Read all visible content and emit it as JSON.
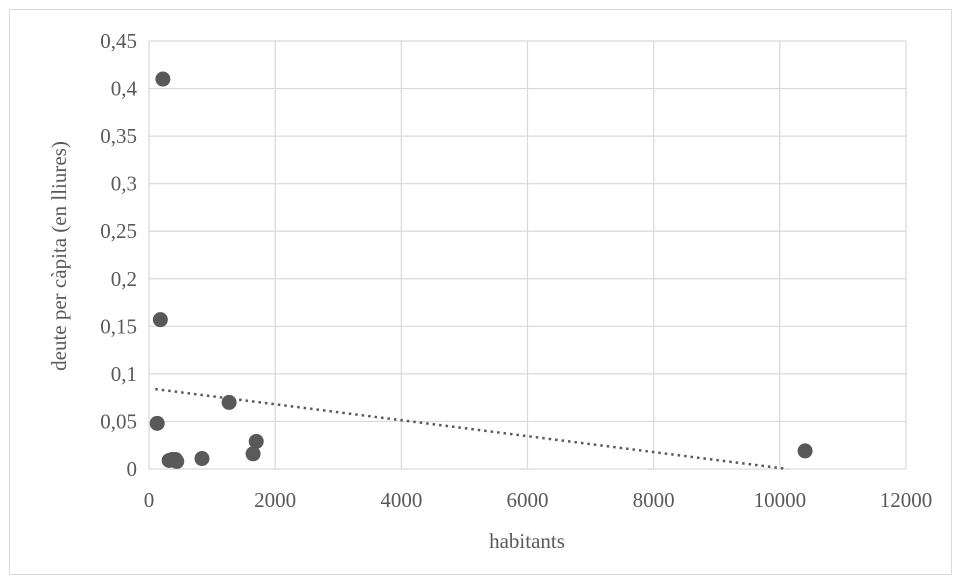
{
  "chart_data": {
    "type": "scatter",
    "title": "",
    "xlabel": "habitants",
    "ylabel": "deute per càpita (en lliures)",
    "xlim": [
      0,
      12000
    ],
    "ylim": [
      0,
      0.45
    ],
    "x_ticks": [
      0,
      2000,
      4000,
      6000,
      8000,
      10000,
      12000
    ],
    "x_tick_labels": [
      "0",
      "2000",
      "4000",
      "6000",
      "8000",
      "10000",
      "12000"
    ],
    "y_ticks": [
      0,
      0.05,
      0.1,
      0.15,
      0.2,
      0.25,
      0.3,
      0.35,
      0.4,
      0.45
    ],
    "y_tick_labels": [
      "0",
      "0,05",
      "0,1",
      "0,15",
      "0,2",
      "0,25",
      "0,3",
      "0,35",
      "0,4",
      "0,45"
    ],
    "grid": true,
    "legend": "none",
    "series": [
      {
        "points": [
          {
            "x": 220,
            "y": 0.41
          },
          {
            "x": 180,
            "y": 0.157
          },
          {
            "x": 130,
            "y": 0.048
          },
          {
            "x": 320,
            "y": 0.009
          },
          {
            "x": 370,
            "y": 0.01
          },
          {
            "x": 420,
            "y": 0.01
          },
          {
            "x": 440,
            "y": 0.008
          },
          {
            "x": 840,
            "y": 0.011
          },
          {
            "x": 1270,
            "y": 0.07
          },
          {
            "x": 1650,
            "y": 0.016
          },
          {
            "x": 1700,
            "y": 0.029
          },
          {
            "x": 10400,
            "y": 0.019
          }
        ],
        "color": "#595959"
      }
    ],
    "trendline": {
      "type": "linear",
      "style": "dotted",
      "color": "#595959",
      "points": [
        {
          "x": 100,
          "y": 0.084
        },
        {
          "x": 10120,
          "y": 0
        }
      ]
    }
  }
}
